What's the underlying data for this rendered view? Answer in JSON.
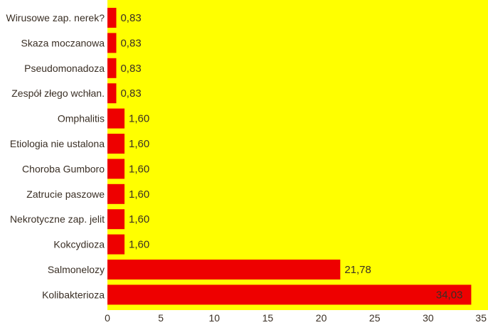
{
  "chart_data": {
    "type": "bar",
    "orientation": "horizontal",
    "categories": [
      "Wirusowe zap. nerek?",
      "Skaza moczanowa",
      "Pseudomonadoza",
      "Zespół złego wchłan.",
      "Omphalitis",
      "Etiologia nie ustalona",
      "Choroba Gumboro",
      "Zatrucie paszowe",
      "Nekrotyczne zap. jelit",
      "Kokcydioza",
      "Salmonelozy",
      "Kolibakterioza"
    ],
    "values": [
      0.83,
      0.83,
      0.83,
      0.83,
      1.6,
      1.6,
      1.6,
      1.6,
      1.6,
      1.6,
      21.78,
      34.03
    ],
    "value_labels": [
      "0,83",
      "0,83",
      "0,83",
      "0,83",
      "1,60",
      "1,60",
      "1,60",
      "1,60",
      "1,60",
      "1,60",
      "21,78",
      "34,03"
    ],
    "title": "",
    "xlabel": "",
    "ylabel": "",
    "xlim": [
      0,
      35
    ],
    "x_ticks": [
      0,
      5,
      10,
      15,
      20,
      25,
      30,
      35
    ],
    "x_tick_labels": [
      "0",
      "5",
      "10",
      "15",
      "20",
      "25",
      "30",
      "35"
    ],
    "grid": false,
    "legend": "none",
    "colors": {
      "plot_background": "#ffff00",
      "bar": "#ee0000",
      "text": "#3a2f25"
    }
  }
}
